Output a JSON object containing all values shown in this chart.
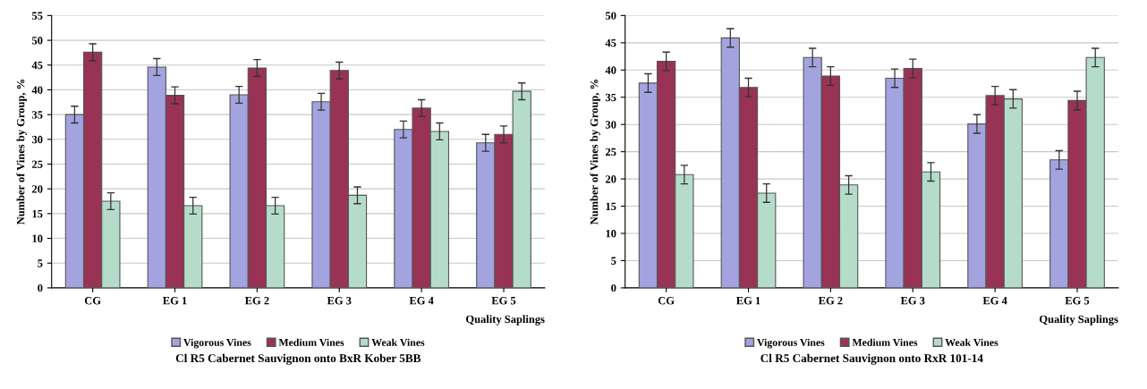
{
  "chart_data": [
    {
      "type": "bar",
      "title": "Cl R5 Cabernet Sauvignon onto BxR Kober 5BB",
      "xlabel": "Quality Saplings",
      "ylabel": "Number of Vines by Group, %",
      "categories": [
        "CG",
        "EG 1",
        "EG 2",
        "EG 3",
        "EG 4",
        "EG 5"
      ],
      "series": [
        {
          "name": "Vigorous Vines",
          "color": "#a3a3e0",
          "values": [
            35,
            44.6,
            39,
            37.6,
            32,
            29.3
          ],
          "errors": [
            1.7,
            1.7,
            1.7,
            1.7,
            1.7,
            1.7
          ]
        },
        {
          "name": "Medium Vines",
          "color": "#993355",
          "values": [
            47.6,
            38.9,
            44.4,
            43.9,
            36.3,
            31
          ],
          "errors": [
            1.7,
            1.7,
            1.7,
            1.7,
            1.7,
            1.7
          ]
        },
        {
          "name": "Weak Vines",
          "color": "#b5dccb",
          "values": [
            17.5,
            16.6,
            16.6,
            18.7,
            31.6,
            39.7
          ],
          "errors": [
            1.7,
            1.7,
            1.7,
            1.7,
            1.7,
            1.7
          ]
        }
      ],
      "ylim": [
        0,
        55
      ],
      "yticks": [
        0,
        5,
        10,
        15,
        20,
        25,
        30,
        35,
        40,
        45,
        50,
        55
      ],
      "grid": "y",
      "legend": "bottom"
    },
    {
      "type": "bar",
      "title": "Cl R5 Cabernet Sauvignon onto RxR 101-14",
      "xlabel": "Quality Saplings",
      "ylabel": "Number of Vines by Group, %",
      "categories": [
        "CG",
        "EG 1",
        "EG 2",
        "EG 3",
        "EG 4",
        "EG 5"
      ],
      "series": [
        {
          "name": "Vigorous Vines",
          "color": "#a3a3e0",
          "values": [
            37.6,
            45.9,
            42.3,
            38.5,
            30.1,
            23.5
          ],
          "errors": [
            1.7,
            1.7,
            1.7,
            1.7,
            1.7,
            1.7
          ]
        },
        {
          "name": "Medium Vines",
          "color": "#993355",
          "values": [
            41.6,
            36.8,
            38.9,
            40.3,
            35.3,
            34.4
          ],
          "errors": [
            1.7,
            1.7,
            1.7,
            1.7,
            1.7,
            1.7
          ]
        },
        {
          "name": "Weak Vines",
          "color": "#b5dccb",
          "values": [
            20.8,
            17.4,
            18.9,
            21.3,
            34.7,
            42.3
          ],
          "errors": [
            1.7,
            1.7,
            1.7,
            1.7,
            1.7,
            1.7
          ]
        }
      ],
      "ylim": [
        0,
        50
      ],
      "yticks": [
        0,
        5,
        10,
        15,
        20,
        25,
        30,
        35,
        40,
        45,
        50
      ],
      "grid": "y",
      "legend": "bottom"
    }
  ]
}
